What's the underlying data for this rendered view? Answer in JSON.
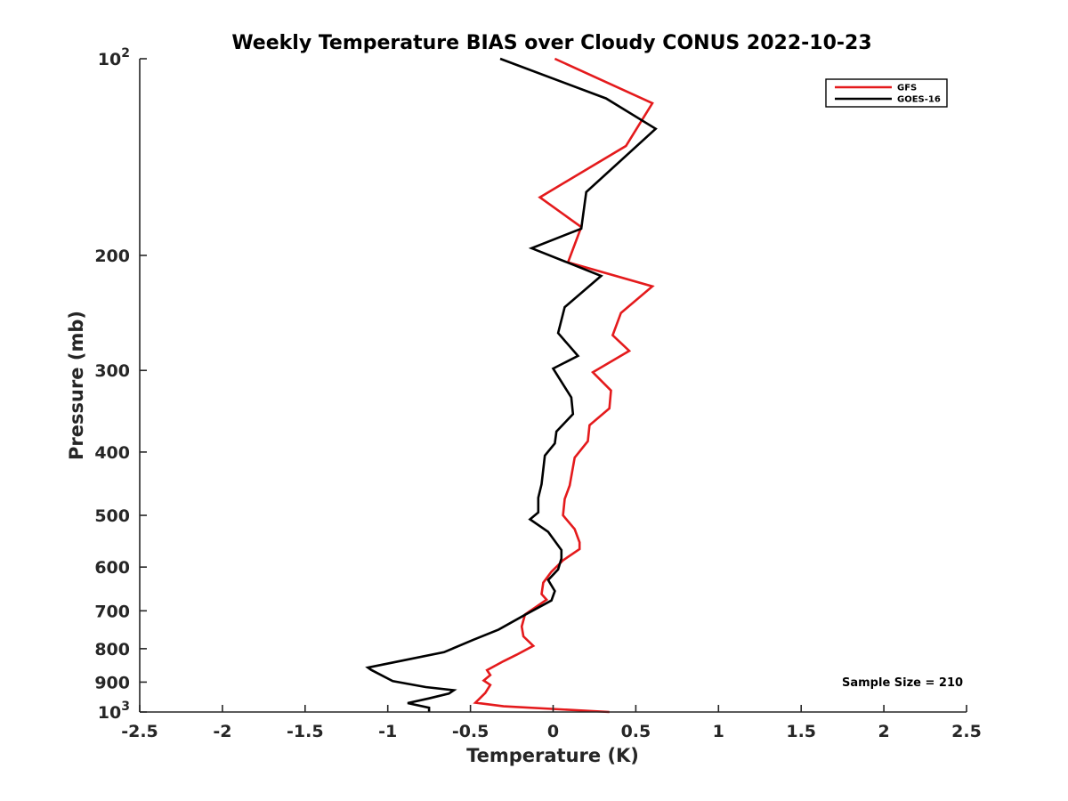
{
  "chart_data": {
    "type": "line",
    "title": "Weekly Temperature BIAS over Cloudy CONUS 2022-10-23",
    "xlabel": "Temperature (K)",
    "ylabel": "Pressure (mb)",
    "xlim": [
      -2.5,
      2.5
    ],
    "ylim": [
      100,
      1000
    ],
    "y_scale": "log",
    "y_reversed": true,
    "grid": false,
    "legend_position": "top-right",
    "x_ticks": [
      "-2.5",
      "-2",
      "-1.5",
      "-1",
      "-0.5",
      "0",
      "0.5",
      "1",
      "1.5",
      "2",
      "2.5"
    ],
    "x_tick_values": [
      -2.5,
      -2,
      -1.5,
      -1,
      -0.5,
      0,
      0.5,
      1,
      1.5,
      2,
      2.5
    ],
    "y_ticks": [
      {
        "value": 100,
        "base": "10",
        "exp": "2"
      },
      {
        "value": 200,
        "label": "200"
      },
      {
        "value": 300,
        "label": "300"
      },
      {
        "value": 400,
        "label": "400"
      },
      {
        "value": 500,
        "label": "500"
      },
      {
        "value": 600,
        "label": "600"
      },
      {
        "value": 700,
        "label": "700"
      },
      {
        "value": 800,
        "label": "800"
      },
      {
        "value": 900,
        "label": "900"
      },
      {
        "value": 1000,
        "base": "10",
        "exp": "3"
      }
    ],
    "annotation": "Sample Size = 210",
    "series": [
      {
        "name": "GFS",
        "color": "#e41a1c",
        "points": [
          [
            0.01,
            100
          ],
          [
            0.6,
            117
          ],
          [
            0.44,
            136
          ],
          [
            -0.08,
            163
          ],
          [
            0.17,
            181
          ],
          [
            0.09,
            205
          ],
          [
            0.6,
            223
          ],
          [
            0.41,
            245
          ],
          [
            0.36,
            265
          ],
          [
            0.46,
            280
          ],
          [
            0.24,
            302
          ],
          [
            0.35,
            322
          ],
          [
            0.34,
            343
          ],
          [
            0.22,
            364
          ],
          [
            0.21,
            385
          ],
          [
            0.13,
            408
          ],
          [
            0.1,
            450
          ],
          [
            0.07,
            472
          ],
          [
            0.06,
            500
          ],
          [
            0.13,
            525
          ],
          [
            0.16,
            550
          ],
          [
            0.16,
            563
          ],
          [
            0.06,
            586
          ],
          [
            -0.01,
            610
          ],
          [
            -0.06,
            634
          ],
          [
            -0.07,
            660
          ],
          [
            -0.04,
            673
          ],
          [
            -0.17,
            709
          ],
          [
            -0.19,
            740
          ],
          [
            -0.18,
            766
          ],
          [
            -0.12,
            792
          ],
          [
            -0.22,
            817
          ],
          [
            -0.3,
            836
          ],
          [
            -0.4,
            863
          ],
          [
            -0.38,
            878
          ],
          [
            -0.42,
            895
          ],
          [
            -0.38,
            909
          ],
          [
            -0.41,
            935
          ],
          [
            -0.47,
            968
          ],
          [
            -0.3,
            980
          ],
          [
            0.34,
            1000
          ]
        ]
      },
      {
        "name": "GOES-16",
        "color": "#000000",
        "points": [
          [
            -0.32,
            100
          ],
          [
            0.32,
            115
          ],
          [
            0.62,
            128
          ],
          [
            0.2,
            160
          ],
          [
            0.17,
            182
          ],
          [
            -0.13,
            195
          ],
          [
            0.29,
            215
          ],
          [
            0.07,
            240
          ],
          [
            0.03,
            263
          ],
          [
            0.15,
            285
          ],
          [
            0.0,
            298
          ],
          [
            0.11,
            330
          ],
          [
            0.12,
            350
          ],
          [
            0.02,
            372
          ],
          [
            0.01,
            388
          ],
          [
            -0.05,
            405
          ],
          [
            -0.07,
            448
          ],
          [
            -0.09,
            470
          ],
          [
            -0.09,
            495
          ],
          [
            -0.14,
            507
          ],
          [
            -0.03,
            530
          ],
          [
            0.05,
            565
          ],
          [
            0.05,
            582
          ],
          [
            0.03,
            605
          ],
          [
            -0.03,
            628
          ],
          [
            0.01,
            653
          ],
          [
            -0.01,
            675
          ],
          [
            -0.17,
            710
          ],
          [
            -0.33,
            748
          ],
          [
            -0.48,
            775
          ],
          [
            -0.66,
            810
          ],
          [
            -0.94,
            837
          ],
          [
            -1.12,
            855
          ],
          [
            -1.1,
            862
          ],
          [
            -0.97,
            897
          ],
          [
            -0.77,
            916
          ],
          [
            -0.6,
            926
          ],
          [
            -0.63,
            937
          ],
          [
            -0.75,
            953
          ],
          [
            -0.88,
            969
          ],
          [
            -0.75,
            985
          ],
          [
            -0.75,
            1000
          ]
        ]
      }
    ]
  }
}
